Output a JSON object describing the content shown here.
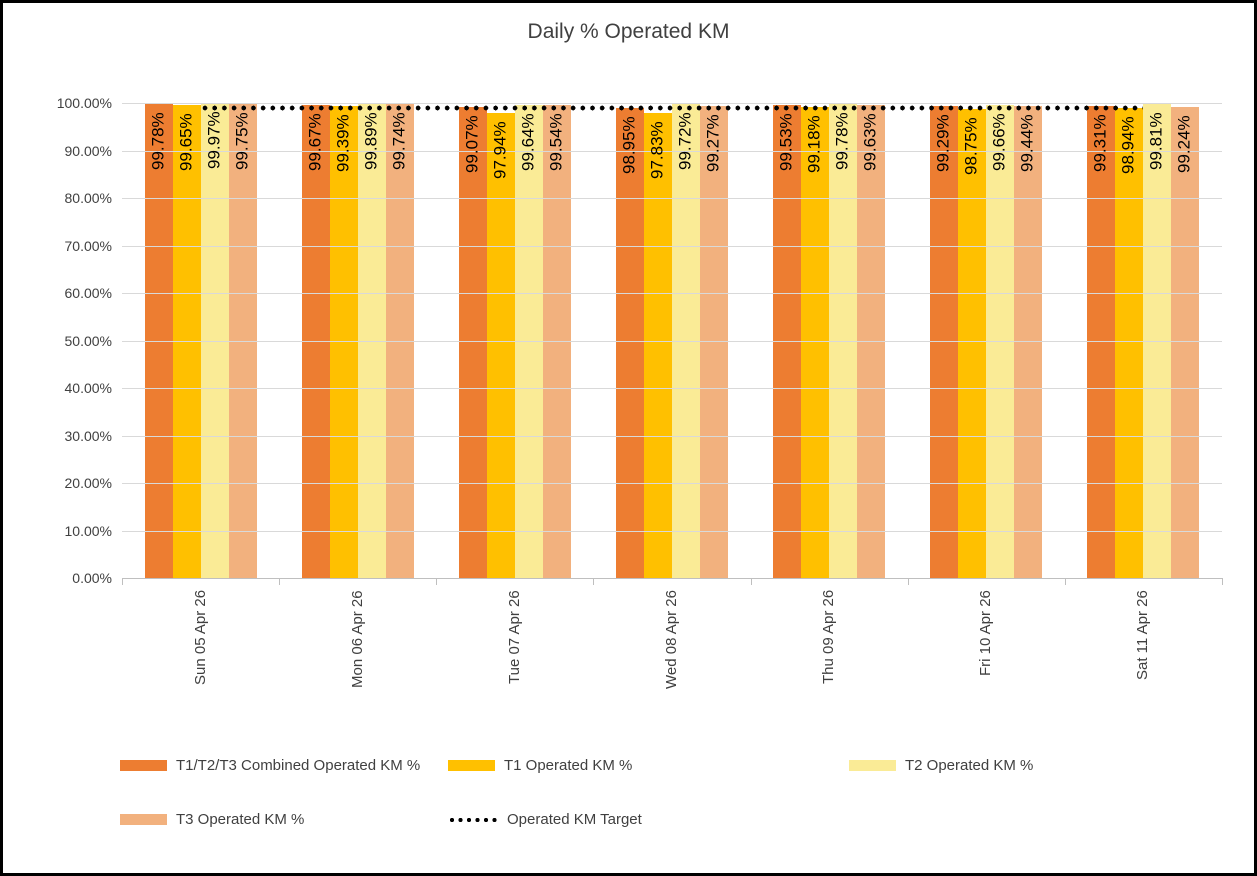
{
  "chart_data": {
    "type": "bar",
    "title": "Daily % Operated KM",
    "categories": [
      "Sun 05 Apr 26",
      "Mon 06 Apr 26",
      "Tue 07 Apr 26",
      "Wed 08 Apr 26",
      "Thu 09 Apr 26",
      "Fri 10 Apr 26",
      "Sat 11 Apr 26"
    ],
    "series": [
      {
        "name": "T1/T2/T3 Combined Operated KM %",
        "color": "#ED7D31",
        "values": [
          99.78,
          99.67,
          99.07,
          98.95,
          99.53,
          99.29,
          99.31
        ],
        "labels": [
          "99.78%",
          "99.67%",
          "99.07%",
          "98.95%",
          "99.53%",
          "99.29%",
          "99.31%"
        ]
      },
      {
        "name": "T1 Operated KM %",
        "color": "#FFC000",
        "values": [
          99.65,
          99.39,
          97.94,
          97.83,
          99.18,
          98.75,
          98.94
        ],
        "labels": [
          "99.65%",
          "99.39%",
          "97.94%",
          "97.83%",
          "99.18%",
          "98.75%",
          "98.94%"
        ]
      },
      {
        "name": "T2 Operated KM %",
        "color": "#FAEB96",
        "values": [
          99.97,
          99.89,
          99.64,
          99.72,
          99.78,
          99.66,
          99.81
        ],
        "labels": [
          "99.97%",
          "99.89%",
          "99.64%",
          "99.72%",
          "99.78%",
          "99.66%",
          "99.81%"
        ]
      },
      {
        "name": "T3 Operated KM %",
        "color": "#F2B17E",
        "values": [
          99.75,
          99.74,
          99.54,
          99.27,
          99.63,
          99.44,
          99.24
        ],
        "labels": [
          "99.75%",
          "99.74%",
          "99.54%",
          "99.27%",
          "99.63%",
          "99.44%",
          "99.24%"
        ]
      }
    ],
    "target_line": {
      "name": "Operated KM Target",
      "value": 99.0,
      "color": "#000000",
      "style": "dotted"
    },
    "y_axis": {
      "min": 0,
      "max": 100,
      "step": 10,
      "tick_labels": [
        "100.00%",
        "90.00%",
        "80.00%",
        "70.00%",
        "60.00%",
        "50.00%",
        "40.00%",
        "30.00%",
        "20.00%",
        "10.00%",
        "0.00%"
      ]
    },
    "legend": {
      "position": "bottom",
      "rows": [
        [
          "T1/T2/T3 Combined Operated KM %",
          "T1 Operated KM %",
          "T2 Operated KM %"
        ],
        [
          "T3 Operated KM %",
          "Operated KM Target"
        ]
      ]
    },
    "grid": "horizontal",
    "layout_hints": {
      "bar_labels_rotated": true,
      "x_labels_rotated": true,
      "label_position": "inside_end"
    }
  }
}
